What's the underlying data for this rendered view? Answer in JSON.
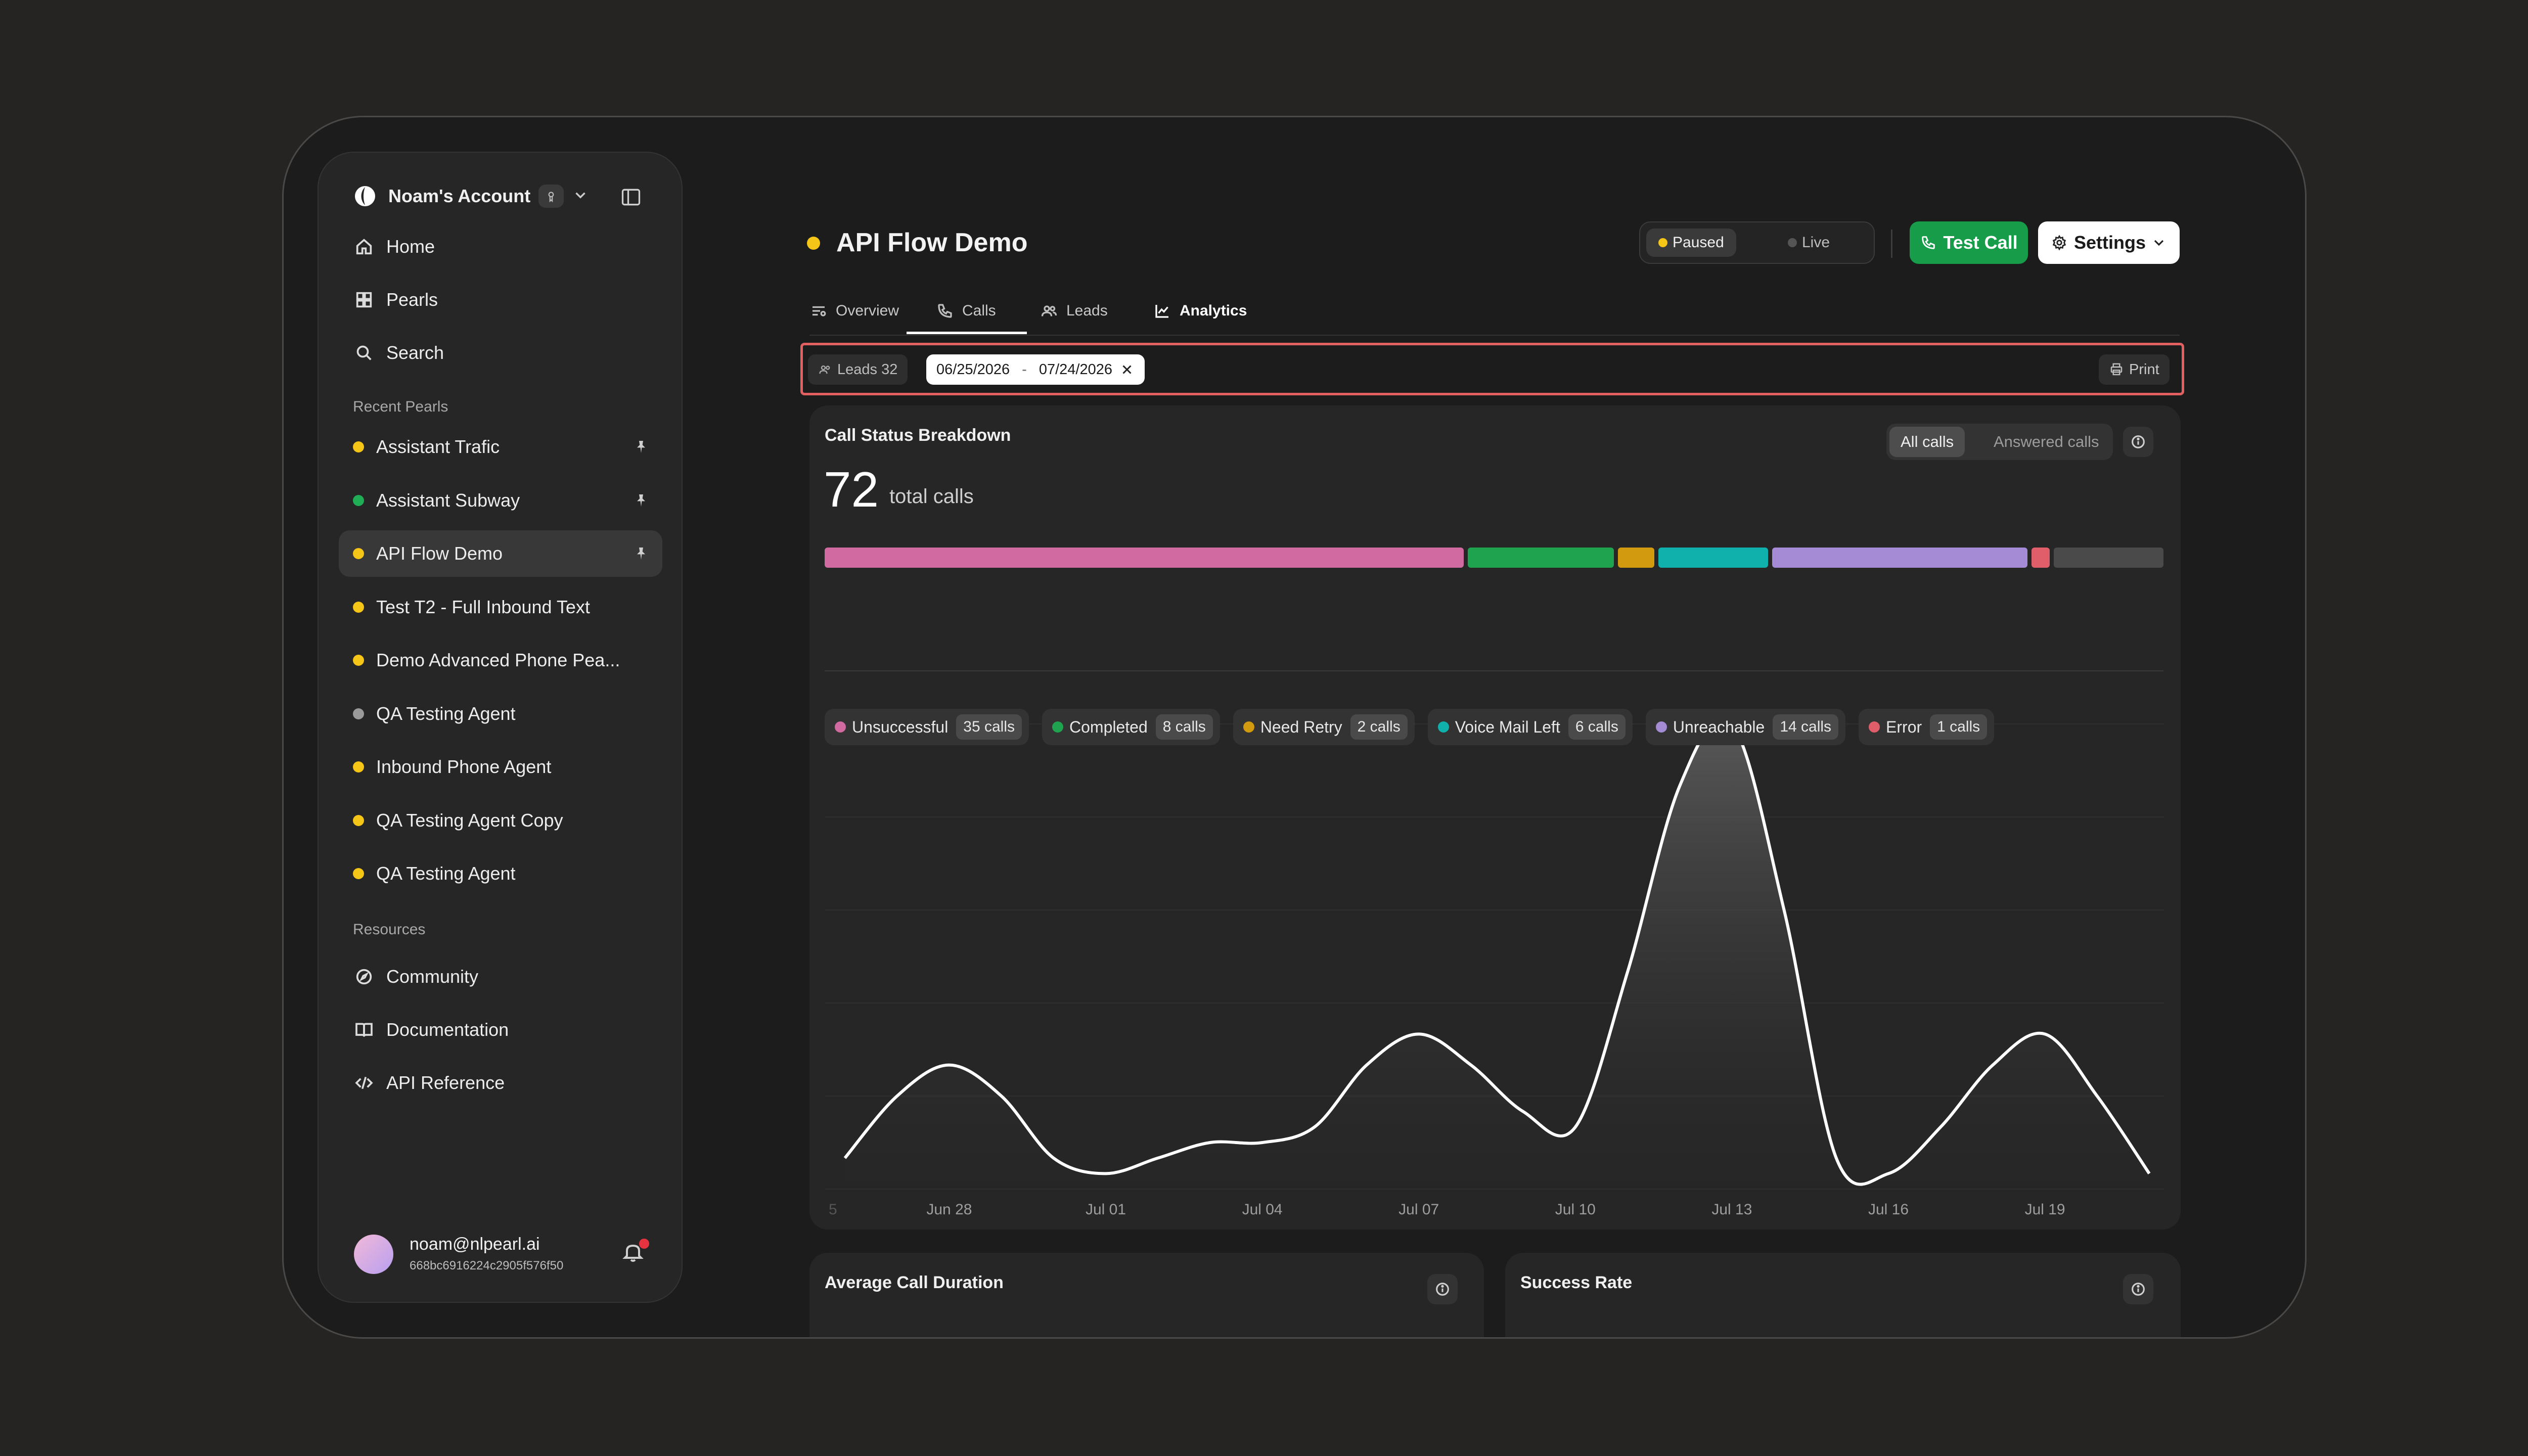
{
  "account": {
    "name": "Noam's Account"
  },
  "nav": {
    "home": "Home",
    "pearls": "Pearls",
    "search": "Search"
  },
  "recent": {
    "label": "Recent Pearls",
    "items": [
      {
        "label": "Assistant Trafic",
        "status_color": "#f5c518",
        "pinned": true
      },
      {
        "label": "Assistant Subway",
        "status_color": "#1fae55",
        "pinned": true
      },
      {
        "label": "API Flow Demo",
        "status_color": "#f5c518",
        "pinned": true
      },
      {
        "label": "Test T2 - Full Inbound Text",
        "status_color": "#f5c518",
        "pinned": false
      },
      {
        "label": "Demo Advanced Phone Pea...",
        "status_color": "#f5c518",
        "pinned": false
      },
      {
        "label": "QA Testing Agent",
        "status_color": "#9a9a9a",
        "pinned": false
      },
      {
        "label": "Inbound Phone Agent",
        "status_color": "#f5c518",
        "pinned": false
      },
      {
        "label": "QA Testing Agent Copy",
        "status_color": "#f5c518",
        "pinned": false
      },
      {
        "label": "QA Testing Agent",
        "status_color": "#f5c518",
        "pinned": false
      }
    ]
  },
  "resources": {
    "label": "Resources",
    "community": "Community",
    "documentation": "Documentation",
    "api_reference": "API Reference"
  },
  "user": {
    "email": "noam@nlpearl.ai",
    "id": "668bc6916224c2905f576f50"
  },
  "header": {
    "title": "API Flow Demo",
    "status_paused": "Paused",
    "status_live": "Live",
    "test_call": "Test Call",
    "settings": "Settings"
  },
  "tabs": {
    "overview": "Overview",
    "calls": "Calls",
    "leads": "Leads",
    "analytics": "Analytics"
  },
  "filters": {
    "leads_label": "Leads 32",
    "date_from": "06/25/2026",
    "date_sep": "-",
    "date_to": "07/24/2026",
    "print": "Print"
  },
  "breakdown": {
    "title": "Call Status Breakdown",
    "toggle_all": "All calls",
    "toggle_answered": "Answered calls",
    "total": "72",
    "total_label": "total calls",
    "statuses": [
      {
        "label": "Unsuccessful",
        "count": "35 calls",
        "value": 35,
        "color": "#d06aa0"
      },
      {
        "label": "Completed",
        "count": "8 calls",
        "value": 8,
        "color": "#1fa34f"
      },
      {
        "label": "Need Retry",
        "count": "2 calls",
        "value": 2,
        "color": "#d19a0f"
      },
      {
        "label": "Voice Mail Left",
        "count": "6 calls",
        "value": 6,
        "color": "#10b1ad"
      },
      {
        "label": "Unreachable",
        "count": "14 calls",
        "value": 14,
        "color": "#a58ad6"
      },
      {
        "label": "Error",
        "count": "1 calls",
        "value": 1,
        "color": "#e05d6a"
      }
    ],
    "remainder_color": "#4a4a4a"
  },
  "chart_data": {
    "type": "area",
    "x": [
      "Jun 26",
      "Jun 27",
      "Jun 28",
      "Jun 29",
      "Jun 30",
      "Jul 01",
      "Jul 02",
      "Jul 03",
      "Jul 04",
      "Jul 05",
      "Jul 06",
      "Jul 07",
      "Jul 08",
      "Jul 09",
      "Jul 10",
      "Jul 11",
      "Jul 12",
      "Jul 13",
      "Jul 14",
      "Jul 15",
      "Jul 16",
      "Jul 17",
      "Jul 18",
      "Jul 19",
      "Jul 20",
      "Jul 21"
    ],
    "values": [
      1,
      3,
      4,
      3,
      1,
      0.5,
      1,
      1.5,
      1.5,
      2,
      4,
      5,
      4,
      2.5,
      2,
      7,
      13,
      15,
      9,
      1,
      0.5,
      2,
      4,
      5,
      3,
      0.5
    ],
    "tick_labels": [
      "5",
      "Jun 28",
      "Jul 01",
      "Jul 04",
      "Jul 07",
      "Jul 10",
      "Jul 13",
      "Jul 16",
      "Jul 19"
    ],
    "grid": true
  },
  "bottom_cards": {
    "avg_duration": "Average Call Duration",
    "success_rate": "Success Rate"
  }
}
